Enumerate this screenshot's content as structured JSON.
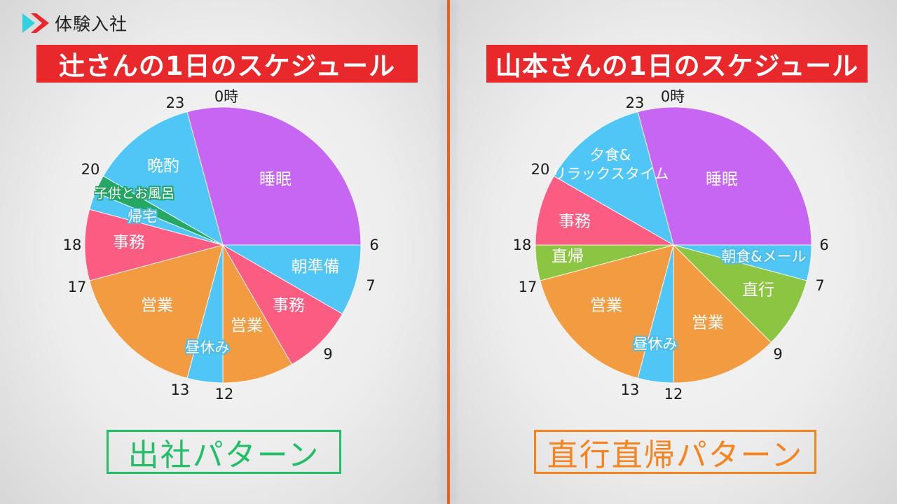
{
  "header": {
    "logo_label": "体験入社",
    "logo_colors": {
      "triangle": "#2fd3e0",
      "chevron": "#e8282b"
    }
  },
  "left_panel": {
    "title": "辻さんの1日のスケジュール",
    "pattern_label": "出社パターン",
    "pattern_color": "#22bf68"
  },
  "right_panel": {
    "title": "山本さんの1日のスケジュール",
    "pattern_label": "直行直帰パターン",
    "pattern_color": "#f5841f"
  },
  "colors": {
    "sleep": "#c766f2",
    "blue": "#4fc6f6",
    "pink": "#fa5c82",
    "orange": "#f39b40",
    "green_dark": "#26a865",
    "lime": "#8cc541",
    "banner_red": "#e8282b",
    "divider": "#e4631c"
  },
  "chart_data": [
    {
      "type": "pie",
      "title": "辻さんの1日のスケジュール",
      "subtitle": "出社パターン",
      "unit": "hours (24h clock, 0時 at top, clockwise)",
      "hour_labels": [
        "0時",
        "23",
        "20",
        "18",
        "17",
        "13",
        "12",
        "9",
        "7",
        "6"
      ],
      "segments": [
        {
          "label": "睡眠",
          "start": 23,
          "end": 6,
          "hours": 7,
          "color": "#c766f2"
        },
        {
          "label": "朝準備",
          "start": 6,
          "end": 8,
          "hours": 2,
          "color": "#4fc6f6"
        },
        {
          "label": "事務",
          "start": 8,
          "end": 10,
          "hours": 2,
          "color": "#fa5c82"
        },
        {
          "label": "営業",
          "start": 10,
          "end": 12,
          "hours": 2,
          "color": "#f39b40"
        },
        {
          "label": "昼休み",
          "start": 12,
          "end": 13,
          "hours": 1,
          "color": "#4fc6f6"
        },
        {
          "label": "営業",
          "start": 13,
          "end": 17,
          "hours": 4,
          "color": "#f39b40"
        },
        {
          "label": "事務",
          "start": 17,
          "end": 19,
          "hours": 2,
          "color": "#fa5c82"
        },
        {
          "label": "帰宅",
          "start": 19,
          "end": 19.5,
          "hours": 0.5,
          "color": "#4fc6f6"
        },
        {
          "label": "子供とお風呂",
          "start": 19.5,
          "end": 20,
          "hours": 0.5,
          "color": "#26a865"
        },
        {
          "label": "晩酌",
          "start": 20,
          "end": 23,
          "hours": 3,
          "color": "#4fc6f6"
        }
      ]
    },
    {
      "type": "pie",
      "title": "山本さんの1日のスケジュール",
      "subtitle": "直行直帰パターン",
      "unit": "hours (24h clock, 0時 at top, clockwise)",
      "hour_labels": [
        "0時",
        "23",
        "20",
        "18",
        "17",
        "13",
        "12",
        "9",
        "7",
        "6"
      ],
      "segments": [
        {
          "label": "睡眠",
          "start": 23,
          "end": 6,
          "hours": 7,
          "color": "#c766f2"
        },
        {
          "label": "朝食&メール",
          "start": 6,
          "end": 7,
          "hours": 1,
          "color": "#4fc6f6"
        },
        {
          "label": "直行",
          "start": 7,
          "end": 9,
          "hours": 2,
          "color": "#8cc541"
        },
        {
          "label": "営業",
          "start": 9,
          "end": 12,
          "hours": 3,
          "color": "#f39b40"
        },
        {
          "label": "昼休み",
          "start": 12,
          "end": 13,
          "hours": 1,
          "color": "#4fc6f6"
        },
        {
          "label": "営業",
          "start": 13,
          "end": 17,
          "hours": 4,
          "color": "#f39b40"
        },
        {
          "label": "直帰",
          "start": 17,
          "end": 18,
          "hours": 1,
          "color": "#8cc541"
        },
        {
          "label": "事務",
          "start": 18,
          "end": 20,
          "hours": 2,
          "color": "#fa5c82"
        },
        {
          "label": "夕食&リラックスタイム",
          "label_line1": "夕食&",
          "label_line2": "リラックスタイム",
          "start": 20,
          "end": 23,
          "hours": 3,
          "color": "#4fc6f6"
        }
      ]
    }
  ]
}
